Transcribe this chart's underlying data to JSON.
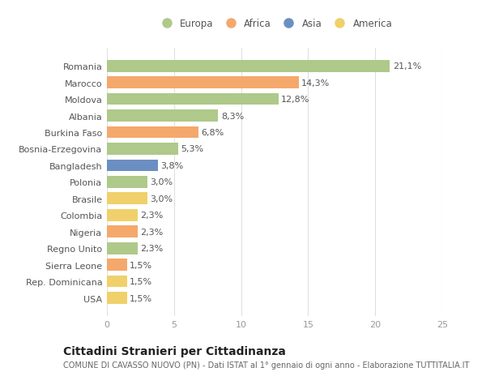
{
  "countries": [
    "Romania",
    "Marocco",
    "Moldova",
    "Albania",
    "Burkina Faso",
    "Bosnia-Erzegovina",
    "Bangladesh",
    "Polonia",
    "Brasile",
    "Colombia",
    "Nigeria",
    "Regno Unito",
    "Sierra Leone",
    "Rep. Dominicana",
    "USA"
  ],
  "values": [
    21.1,
    14.3,
    12.8,
    8.3,
    6.8,
    5.3,
    3.8,
    3.0,
    3.0,
    2.3,
    2.3,
    2.3,
    1.5,
    1.5,
    1.5
  ],
  "labels": [
    "21,1%",
    "14,3%",
    "12,8%",
    "8,3%",
    "6,8%",
    "5,3%",
    "3,8%",
    "3,0%",
    "3,0%",
    "2,3%",
    "2,3%",
    "2,3%",
    "1,5%",
    "1,5%",
    "1,5%"
  ],
  "colors": [
    "#aec98a",
    "#f4a86c",
    "#aec98a",
    "#aec98a",
    "#f4a86c",
    "#aec98a",
    "#6b8fc2",
    "#aec98a",
    "#f0d06a",
    "#f0d06a",
    "#f4a86c",
    "#aec98a",
    "#f4a86c",
    "#f0d06a",
    "#f0d06a"
  ],
  "legend": [
    {
      "label": "Europa",
      "color": "#aec98a"
    },
    {
      "label": "Africa",
      "color": "#f4a86c"
    },
    {
      "label": "Asia",
      "color": "#6b8fc2"
    },
    {
      "label": "America",
      "color": "#f0d06a"
    }
  ],
  "title": "Cittadini Stranieri per Cittadinanza",
  "subtitle": "COMUNE DI CAVASSO NUOVO (PN) - Dati ISTAT al 1° gennaio di ogni anno - Elaborazione TUTTITALIA.IT",
  "xlim": [
    0,
    25
  ],
  "xticks": [
    0,
    5,
    10,
    15,
    20,
    25
  ],
  "bg_color": "#ffffff",
  "grid_color": "#e0e0e0",
  "bar_height": 0.72,
  "label_fontsize": 8,
  "tick_fontsize": 8,
  "ytick_fontsize": 8,
  "title_fontsize": 10,
  "subtitle_fontsize": 7
}
